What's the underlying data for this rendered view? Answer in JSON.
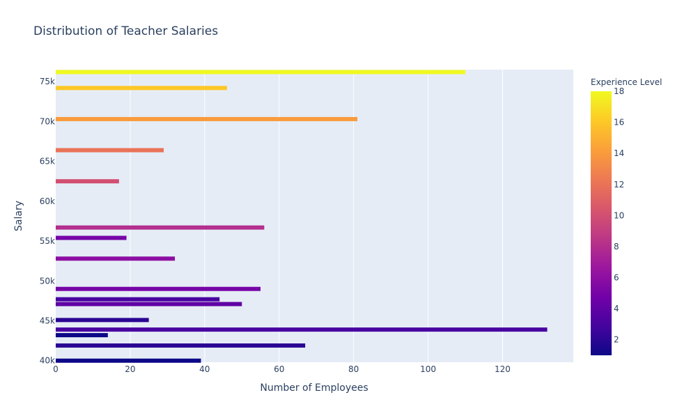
{
  "chart_data": {
    "type": "bar",
    "orientation": "horizontal",
    "title": "Distribution of Teacher Salaries",
    "xlabel": "Number of Employees",
    "ylabel": "Salary",
    "xlim": [
      0,
      139
    ],
    "ylim": [
      39800,
      76500
    ],
    "x_ticks": [
      0,
      20,
      40,
      60,
      80,
      100,
      120
    ],
    "y_ticks": [
      {
        "value": 40000,
        "label": "40k"
      },
      {
        "value": 45000,
        "label": "45k"
      },
      {
        "value": 50000,
        "label": "50k"
      },
      {
        "value": 55000,
        "label": "55k"
      },
      {
        "value": 60000,
        "label": "60k"
      },
      {
        "value": 65000,
        "label": "65k"
      },
      {
        "value": 70000,
        "label": "70k"
      },
      {
        "value": 75000,
        "label": "75k"
      }
    ],
    "grid": true,
    "bars": [
      {
        "salary": 40000,
        "employees": 39,
        "experience": 1
      },
      {
        "salary": 41900,
        "employees": 67,
        "experience": 2
      },
      {
        "salary": 43200,
        "employees": 14,
        "experience": 1
      },
      {
        "salary": 43900,
        "employees": 132,
        "experience": 3
      },
      {
        "salary": 45100,
        "employees": 25,
        "experience": 2
      },
      {
        "salary": 47100,
        "employees": 50,
        "experience": 4
      },
      {
        "salary": 47700,
        "employees": 44,
        "experience": 3
      },
      {
        "salary": 49000,
        "employees": 55,
        "experience": 5
      },
      {
        "salary": 52800,
        "employees": 32,
        "experience": 6
      },
      {
        "salary": 55400,
        "employees": 19,
        "experience": 5
      },
      {
        "salary": 56700,
        "employees": 56,
        "experience": 8
      },
      {
        "salary": 62500,
        "employees": 17,
        "experience": 10
      },
      {
        "salary": 66400,
        "employees": 29,
        "experience": 12
      },
      {
        "salary": 70300,
        "employees": 81,
        "experience": 14
      },
      {
        "salary": 74200,
        "employees": 46,
        "experience": 16
      },
      {
        "salary": 76200,
        "employees": 110,
        "experience": 18
      }
    ],
    "colorbar": {
      "title": "Experience Level",
      "min": 1,
      "max": 18,
      "ticks": [
        2,
        4,
        6,
        8,
        10,
        12,
        14,
        16,
        18
      ],
      "colorscale": [
        "#0d0887",
        "#46039f",
        "#7201a8",
        "#9c179e",
        "#bd3786",
        "#d8576b",
        "#ed7953",
        "#fb9f3a",
        "#fdca26",
        "#f0f921"
      ]
    },
    "colors": {
      "plot_background": "#e5ecf6",
      "grid": "#ffffff",
      "text": "#2a3f5f"
    }
  }
}
